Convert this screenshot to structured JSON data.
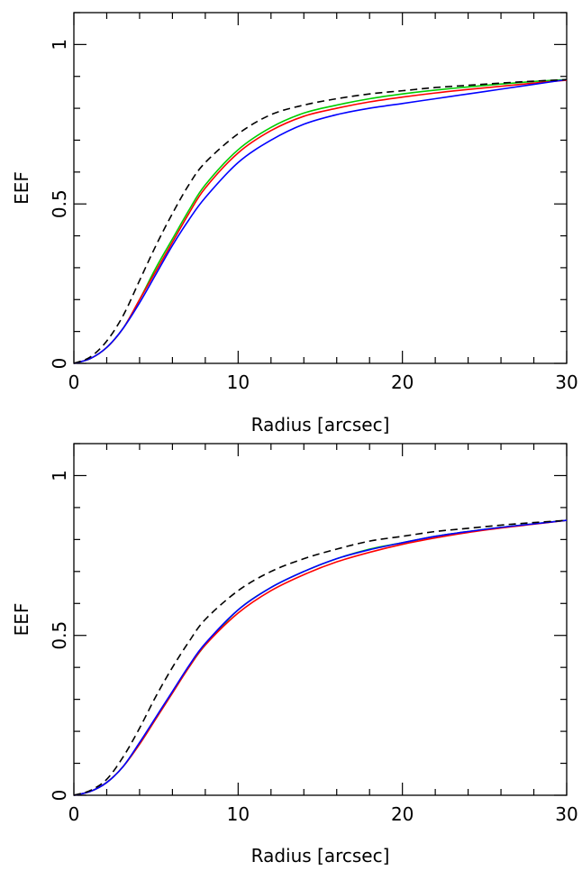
{
  "chart_data": [
    {
      "type": "line",
      "xlabel": "Radius [arcsec]",
      "ylabel": "EEF",
      "xlim": [
        0,
        30
      ],
      "ylim": [
        0,
        1.1
      ],
      "xticks": [
        0,
        10,
        20,
        30
      ],
      "xtick_labels": [
        "0",
        "10",
        "20",
        "30"
      ],
      "yticks": [
        0,
        0.5,
        1
      ],
      "ytick_labels": [
        "0",
        "0.5",
        "1"
      ],
      "grid": false,
      "series": [
        {
          "color": "#000000",
          "style": "dashed",
          "x": [
            0,
            1,
            2,
            3,
            4,
            5,
            6,
            7,
            8,
            10,
            12,
            14,
            16,
            18,
            20,
            22,
            24,
            26,
            28,
            30
          ],
          "y": [
            0,
            0.02,
            0.07,
            0.15,
            0.26,
            0.37,
            0.47,
            0.56,
            0.63,
            0.72,
            0.78,
            0.81,
            0.83,
            0.845,
            0.855,
            0.865,
            0.872,
            0.879,
            0.885,
            0.89
          ]
        },
        {
          "color": "#00cc00",
          "style": "solid",
          "x": [
            0,
            1,
            2,
            3,
            4,
            5,
            6,
            7,
            8,
            10,
            12,
            14,
            16,
            18,
            20,
            22,
            24,
            26,
            28,
            30
          ],
          "y": [
            0,
            0.015,
            0.05,
            0.11,
            0.2,
            0.3,
            0.39,
            0.48,
            0.56,
            0.67,
            0.74,
            0.785,
            0.81,
            0.83,
            0.845,
            0.857,
            0.867,
            0.876,
            0.884,
            0.89
          ]
        },
        {
          "color": "#ff0000",
          "style": "solid",
          "x": [
            0,
            1,
            2,
            3,
            4,
            5,
            6,
            7,
            8,
            10,
            12,
            14,
            16,
            18,
            20,
            22,
            24,
            26,
            28,
            30
          ],
          "y": [
            0,
            0.015,
            0.05,
            0.11,
            0.2,
            0.29,
            0.38,
            0.47,
            0.55,
            0.66,
            0.73,
            0.775,
            0.8,
            0.82,
            0.835,
            0.848,
            0.859,
            0.869,
            0.879,
            0.888
          ]
        },
        {
          "color": "#0000ff",
          "style": "solid",
          "x": [
            0,
            1,
            2,
            3,
            4,
            5,
            6,
            7,
            8,
            10,
            12,
            14,
            16,
            18,
            20,
            22,
            24,
            26,
            28,
            30
          ],
          "y": [
            0,
            0.015,
            0.05,
            0.11,
            0.19,
            0.28,
            0.37,
            0.45,
            0.52,
            0.63,
            0.7,
            0.75,
            0.78,
            0.8,
            0.815,
            0.83,
            0.845,
            0.86,
            0.875,
            0.89
          ]
        }
      ]
    },
    {
      "type": "line",
      "xlabel": "Radius [arcsec]",
      "ylabel": "EEF",
      "xlim": [
        0,
        30
      ],
      "ylim": [
        0,
        1.1
      ],
      "xticks": [
        0,
        10,
        20,
        30
      ],
      "xtick_labels": [
        "0",
        "10",
        "20",
        "30"
      ],
      "yticks": [
        0,
        0.5,
        1
      ],
      "ytick_labels": [
        "0",
        "0.5",
        "1"
      ],
      "grid": false,
      "series": [
        {
          "color": "#000000",
          "style": "dashed",
          "x": [
            0,
            1,
            2,
            3,
            4,
            5,
            6,
            7,
            8,
            10,
            12,
            14,
            16,
            18,
            20,
            22,
            24,
            26,
            28,
            30
          ],
          "y": [
            0,
            0.015,
            0.05,
            0.12,
            0.21,
            0.31,
            0.4,
            0.48,
            0.55,
            0.64,
            0.7,
            0.74,
            0.77,
            0.795,
            0.81,
            0.825,
            0.835,
            0.845,
            0.853,
            0.86
          ]
        },
        {
          "color": "#00cc00",
          "style": "solid",
          "x": [
            0,
            1,
            2,
            3,
            4,
            5,
            6,
            7,
            8,
            10,
            12,
            14,
            16,
            18,
            20,
            22,
            24,
            26,
            28,
            30
          ],
          "y": [
            0,
            0.012,
            0.04,
            0.09,
            0.16,
            0.24,
            0.32,
            0.4,
            0.47,
            0.58,
            0.65,
            0.7,
            0.74,
            0.77,
            0.79,
            0.81,
            0.825,
            0.838,
            0.849,
            0.86
          ]
        },
        {
          "color": "#ff0000",
          "style": "solid",
          "x": [
            0,
            1,
            2,
            3,
            4,
            5,
            6,
            7,
            8,
            10,
            12,
            14,
            16,
            18,
            20,
            22,
            24,
            26,
            28,
            30
          ],
          "y": [
            0,
            0.012,
            0.04,
            0.09,
            0.16,
            0.24,
            0.32,
            0.4,
            0.47,
            0.57,
            0.64,
            0.69,
            0.73,
            0.76,
            0.785,
            0.805,
            0.822,
            0.836,
            0.848,
            0.86
          ]
        },
        {
          "color": "#0000ff",
          "style": "solid",
          "x": [
            0,
            1,
            2,
            3,
            4,
            5,
            6,
            7,
            8,
            10,
            12,
            14,
            16,
            18,
            20,
            22,
            24,
            26,
            28,
            30
          ],
          "y": [
            0,
            0.012,
            0.04,
            0.09,
            0.165,
            0.245,
            0.325,
            0.405,
            0.475,
            0.58,
            0.65,
            0.7,
            0.74,
            0.768,
            0.79,
            0.81,
            0.825,
            0.838,
            0.849,
            0.86
          ]
        }
      ]
    }
  ]
}
